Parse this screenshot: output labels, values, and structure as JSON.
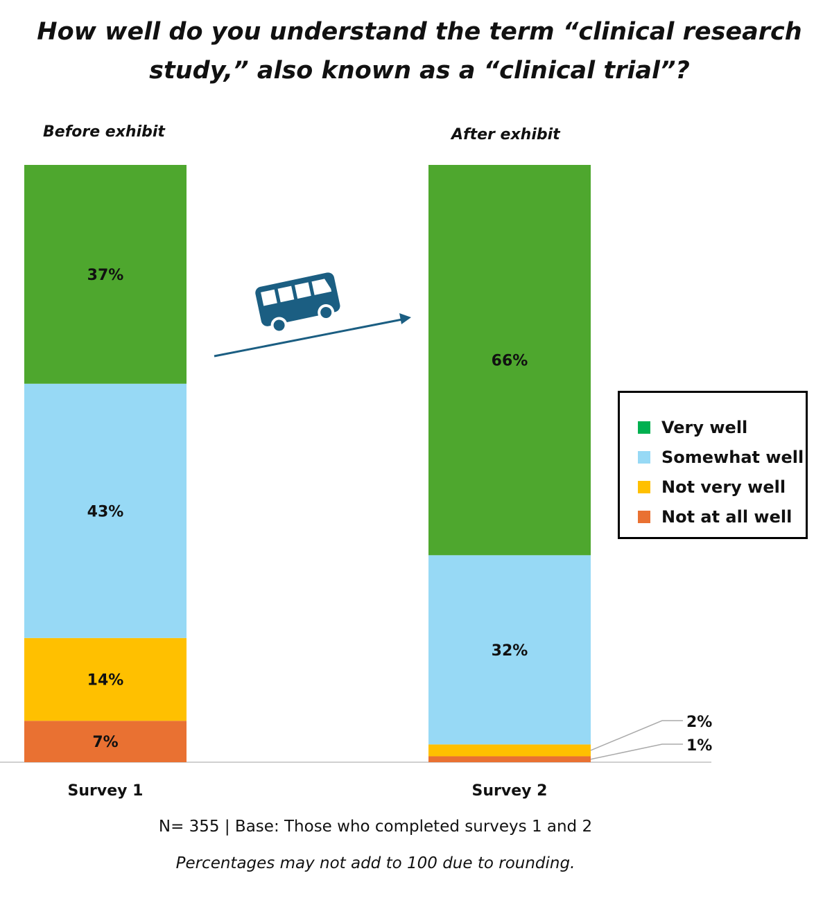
{
  "chart_data": {
    "type": "bar",
    "stacked": true,
    "title": "How well do you understand the term “clinical research study,” also known as a “clinical trial”?",
    "categories": [
      "Survey 1",
      "Survey 2"
    ],
    "category_subtitles": [
      "Before exhibit",
      "After exhibit"
    ],
    "series": [
      {
        "name": "Not at all well",
        "color": "#E97132",
        "values": [
          7,
          1
        ],
        "labels": [
          "7%",
          "1%"
        ]
      },
      {
        "name": "Not very well",
        "color": "#FFC000",
        "values": [
          14,
          2
        ],
        "labels": [
          "14%",
          "2%"
        ]
      },
      {
        "name": "Somewhat well",
        "color": "#97D9F5",
        "values": [
          43,
          32
        ],
        "labels": [
          "43%",
          "32%"
        ]
      },
      {
        "name": "Very well",
        "color": "#4EA72E",
        "values": [
          37,
          66
        ],
        "labels": [
          "37%",
          "66%"
        ]
      }
    ],
    "legend_order": [
      "Very well",
      "Somewhat well",
      "Not very well",
      "Not at all well"
    ],
    "legend_colors": [
      "#00B050",
      "#97D9F5",
      "#FFC000",
      "#E97132"
    ],
    "legend_position": "right",
    "ylim": [
      0,
      101
    ],
    "grid": false
  },
  "icon": "bus-icon",
  "icon_color": "#1B5E82",
  "footnote": "N= 355 | Base: Those who completed surveys 1 and 2",
  "caveat": "Percentages may not add to 100 due to rounding."
}
